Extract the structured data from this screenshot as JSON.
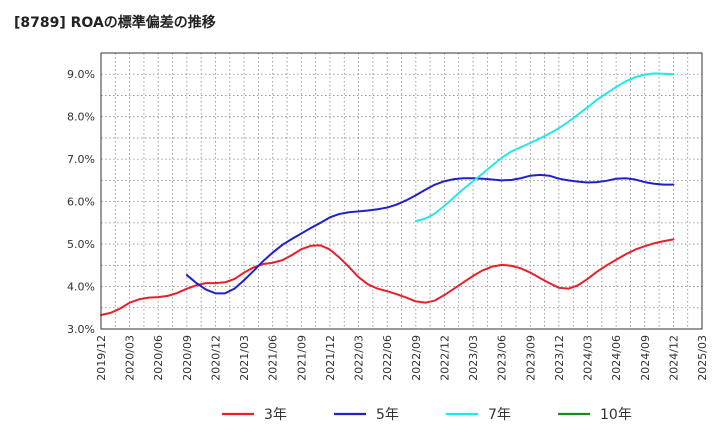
{
  "title": "[8789]  ROAの標準偏差の推移",
  "chart_data": {
    "type": "line",
    "title": "[8789]  ROAの標準偏差の推移",
    "xlabel": "",
    "ylabel": "",
    "ylim": [
      3.0,
      9.5
    ],
    "yticks": [
      3.0,
      4.0,
      5.0,
      6.0,
      7.0,
      8.0,
      9.0
    ],
    "ytick_labels": [
      "3.0%",
      "4.0%",
      "5.0%",
      "6.0%",
      "7.0%",
      "8.0%",
      "9.0%"
    ],
    "xticks": [
      "2019/12",
      "2020/03",
      "2020/06",
      "2020/09",
      "2020/12",
      "2021/03",
      "2021/06",
      "2021/09",
      "2021/12",
      "2022/03",
      "2022/06",
      "2022/09",
      "2022/12",
      "2023/03",
      "2023/06",
      "2023/09",
      "2023/12",
      "2024/03",
      "2024/06",
      "2024/09",
      "2024/12",
      "2025/03"
    ],
    "grid": true,
    "legend_position": "bottom",
    "series": [
      {
        "name": "3年",
        "color": "#e8202a",
        "points": [
          [
            "2019/12",
            3.33
          ],
          [
            "2020/01",
            3.38
          ],
          [
            "2020/02",
            3.48
          ],
          [
            "2020/03",
            3.62
          ],
          [
            "2020/04",
            3.7
          ],
          [
            "2020/05",
            3.74
          ],
          [
            "2020/06",
            3.75
          ],
          [
            "2020/07",
            3.78
          ],
          [
            "2020/08",
            3.85
          ],
          [
            "2020/09",
            3.95
          ],
          [
            "2020/10",
            4.03
          ],
          [
            "2020/11",
            4.08
          ],
          [
            "2020/12",
            4.08
          ],
          [
            "2021/01",
            4.1
          ],
          [
            "2021/02",
            4.18
          ],
          [
            "2021/03",
            4.33
          ],
          [
            "2021/04",
            4.45
          ],
          [
            "2021/05",
            4.53
          ],
          [
            "2021/06",
            4.56
          ],
          [
            "2021/07",
            4.62
          ],
          [
            "2021/08",
            4.74
          ],
          [
            "2021/09",
            4.88
          ],
          [
            "2021/10",
            4.96
          ],
          [
            "2021/11",
            4.97
          ],
          [
            "2021/12",
            4.87
          ],
          [
            "2022/01",
            4.68
          ],
          [
            "2022/02",
            4.46
          ],
          [
            "2022/03",
            4.22
          ],
          [
            "2022/04",
            4.05
          ],
          [
            "2022/05",
            3.95
          ],
          [
            "2022/06",
            3.89
          ],
          [
            "2022/07",
            3.82
          ],
          [
            "2022/08",
            3.74
          ],
          [
            "2022/09",
            3.65
          ],
          [
            "2022/10",
            3.62
          ],
          [
            "2022/11",
            3.67
          ],
          [
            "2022/12",
            3.8
          ],
          [
            "2023/01",
            3.95
          ],
          [
            "2023/02",
            4.1
          ],
          [
            "2023/03",
            4.25
          ],
          [
            "2023/04",
            4.38
          ],
          [
            "2023/05",
            4.47
          ],
          [
            "2023/06",
            4.51
          ],
          [
            "2023/07",
            4.49
          ],
          [
            "2023/08",
            4.43
          ],
          [
            "2023/09",
            4.33
          ],
          [
            "2023/10",
            4.2
          ],
          [
            "2023/11",
            4.08
          ],
          [
            "2023/12",
            3.97
          ],
          [
            "2024/01",
            3.95
          ],
          [
            "2024/02",
            4.03
          ],
          [
            "2024/03",
            4.18
          ],
          [
            "2024/04",
            4.35
          ],
          [
            "2024/05",
            4.5
          ],
          [
            "2024/06",
            4.63
          ],
          [
            "2024/07",
            4.76
          ],
          [
            "2024/08",
            4.87
          ],
          [
            "2024/09",
            4.95
          ],
          [
            "2024/10",
            5.02
          ],
          [
            "2024/11",
            5.07
          ],
          [
            "2024/12",
            5.11
          ]
        ]
      },
      {
        "name": "5年",
        "color": "#1f22c8",
        "points": [
          [
            "2020/09",
            4.27
          ],
          [
            "2020/10",
            4.08
          ],
          [
            "2020/11",
            3.93
          ],
          [
            "2020/12",
            3.84
          ],
          [
            "2021/01",
            3.84
          ],
          [
            "2021/02",
            3.95
          ],
          [
            "2021/03",
            4.15
          ],
          [
            "2021/04",
            4.37
          ],
          [
            "2021/05",
            4.6
          ],
          [
            "2021/06",
            4.8
          ],
          [
            "2021/07",
            4.98
          ],
          [
            "2021/08",
            5.12
          ],
          [
            "2021/09",
            5.25
          ],
          [
            "2021/10",
            5.38
          ],
          [
            "2021/11",
            5.5
          ],
          [
            "2021/12",
            5.63
          ],
          [
            "2022/01",
            5.71
          ],
          [
            "2022/02",
            5.75
          ],
          [
            "2022/03",
            5.77
          ],
          [
            "2022/04",
            5.79
          ],
          [
            "2022/05",
            5.82
          ],
          [
            "2022/06",
            5.86
          ],
          [
            "2022/07",
            5.93
          ],
          [
            "2022/08",
            6.03
          ],
          [
            "2022/09",
            6.15
          ],
          [
            "2022/10",
            6.28
          ],
          [
            "2022/11",
            6.4
          ],
          [
            "2022/12",
            6.48
          ],
          [
            "2023/01",
            6.53
          ],
          [
            "2023/02",
            6.55
          ],
          [
            "2023/03",
            6.55
          ],
          [
            "2023/04",
            6.54
          ],
          [
            "2023/05",
            6.52
          ],
          [
            "2023/06",
            6.5
          ],
          [
            "2023/07",
            6.51
          ],
          [
            "2023/08",
            6.55
          ],
          [
            "2023/09",
            6.61
          ],
          [
            "2023/10",
            6.63
          ],
          [
            "2023/11",
            6.61
          ],
          [
            "2023/12",
            6.54
          ],
          [
            "2024/01",
            6.5
          ],
          [
            "2024/02",
            6.47
          ],
          [
            "2024/03",
            6.45
          ],
          [
            "2024/04",
            6.46
          ],
          [
            "2024/05",
            6.49
          ],
          [
            "2024/06",
            6.54
          ],
          [
            "2024/07",
            6.55
          ],
          [
            "2024/08",
            6.52
          ],
          [
            "2024/09",
            6.46
          ],
          [
            "2024/10",
            6.42
          ],
          [
            "2024/11",
            6.4
          ],
          [
            "2024/12",
            6.4
          ]
        ]
      },
      {
        "name": "7年",
        "color": "#22e8e8",
        "points": [
          [
            "2022/09",
            5.54
          ],
          [
            "2022/10",
            5.6
          ],
          [
            "2022/11",
            5.72
          ],
          [
            "2022/12",
            5.9
          ],
          [
            "2023/01",
            6.1
          ],
          [
            "2023/02",
            6.3
          ],
          [
            "2023/03",
            6.48
          ],
          [
            "2023/04",
            6.66
          ],
          [
            "2023/05",
            6.85
          ],
          [
            "2023/06",
            7.03
          ],
          [
            "2023/07",
            7.18
          ],
          [
            "2023/08",
            7.28
          ],
          [
            "2023/09",
            7.38
          ],
          [
            "2023/10",
            7.49
          ],
          [
            "2023/11",
            7.6
          ],
          [
            "2023/12",
            7.73
          ],
          [
            "2024/01",
            7.88
          ],
          [
            "2024/02",
            8.05
          ],
          [
            "2024/03",
            8.22
          ],
          [
            "2024/04",
            8.4
          ],
          [
            "2024/05",
            8.55
          ],
          [
            "2024/06",
            8.7
          ],
          [
            "2024/07",
            8.83
          ],
          [
            "2024/08",
            8.93
          ],
          [
            "2024/09",
            8.99
          ],
          [
            "2024/10",
            9.02
          ],
          [
            "2024/11",
            9.01
          ],
          [
            "2024/12",
            9.0
          ]
        ]
      },
      {
        "name": "10年",
        "color": "#1a8a1a",
        "points": []
      }
    ]
  }
}
